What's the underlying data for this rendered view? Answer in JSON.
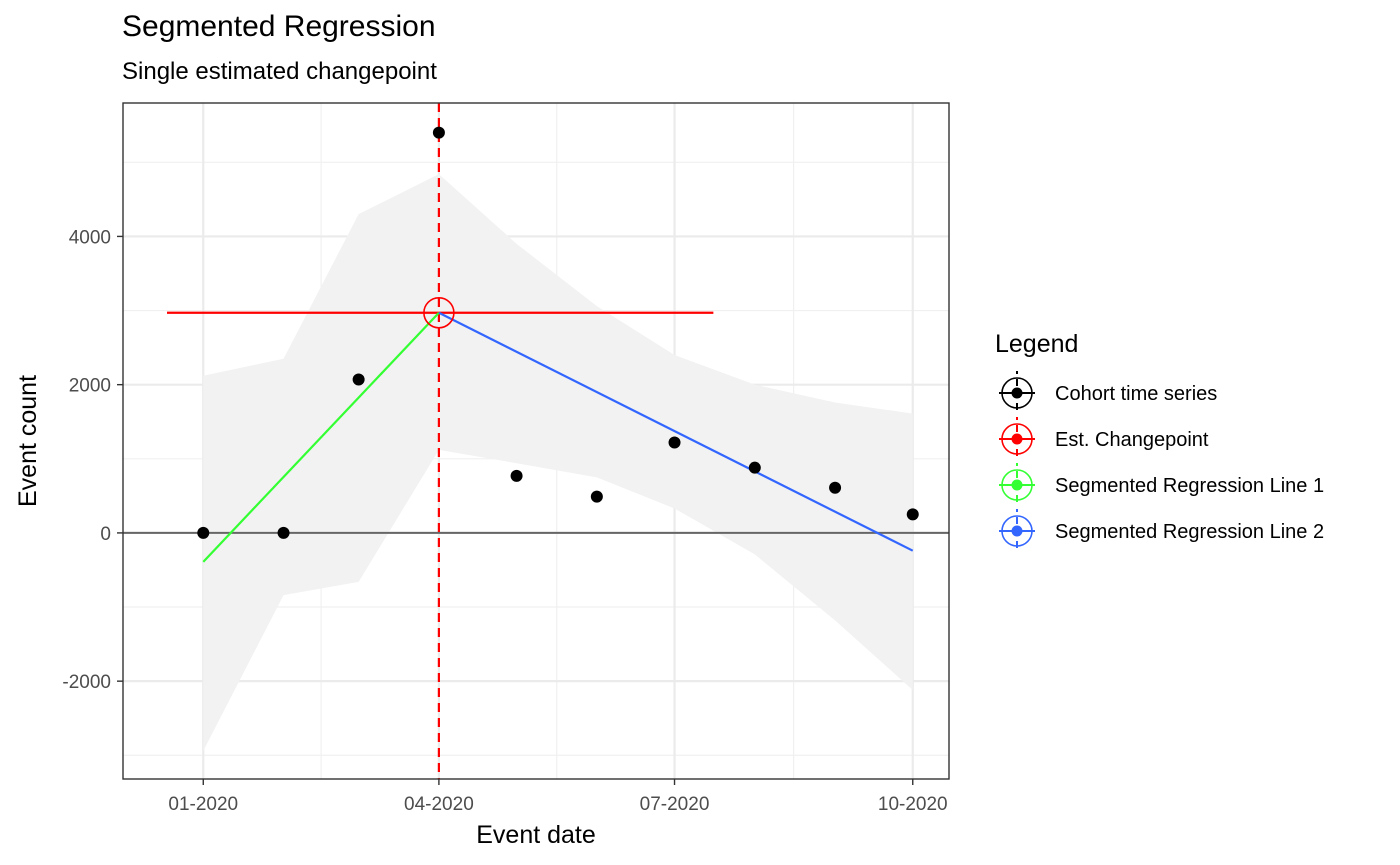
{
  "chart_data": {
    "type": "line",
    "title": "Segmented Regression",
    "subtitle": "Single estimated changepoint",
    "xlabel": "Event date",
    "ylabel": "Event count",
    "x_ticks": [
      "01-2020",
      "04-2020",
      "07-2020",
      "10-2020"
    ],
    "y_ticks": [
      -2000,
      0,
      2000,
      4000
    ],
    "xlim": [
      "2019-12-01",
      "2020-10-15"
    ],
    "ylim": [
      -3320,
      5800
    ],
    "grid": true,
    "legend_position": "right",
    "legend_title": "Legend",
    "legend": [
      {
        "label": "Cohort time series",
        "color": "#000000"
      },
      {
        "label": "Est. Changepoint",
        "color": "#ff0000"
      },
      {
        "label": "Segmented Regression Line 1",
        "color": "#33ff33"
      },
      {
        "label": "Segmented Regression Line 2",
        "color": "#3366ff"
      }
    ],
    "series": [
      {
        "name": "Cohort time series",
        "type": "scatter",
        "color": "#000000",
        "x": [
          "2020-01-01",
          "2020-02-01",
          "2020-03-01",
          "2020-04-01",
          "2020-05-01",
          "2020-06-01",
          "2020-07-01",
          "2020-08-01",
          "2020-09-01",
          "2020-10-01"
        ],
        "y": [
          0,
          0,
          2070,
          5400,
          770,
          490,
          1220,
          880,
          610,
          250
        ]
      },
      {
        "name": "Segmented Regression Line 1",
        "type": "line",
        "color": "#33ff33",
        "x": [
          "2020-01-01",
          "2020-04-01"
        ],
        "y": [
          -390,
          2970
        ]
      },
      {
        "name": "Segmented Regression Line 2",
        "type": "line",
        "color": "#3366ff",
        "x": [
          "2020-04-01",
          "2020-10-01"
        ],
        "y": [
          2970,
          -240
        ]
      }
    ],
    "confidence_band": {
      "color": "#f2f2f2",
      "x": [
        "2020-01-01",
        "2020-02-01",
        "2020-03-01",
        "2020-04-01",
        "2020-05-01",
        "2020-06-01",
        "2020-07-01",
        "2020-08-01",
        "2020-09-01",
        "2020-10-01"
      ],
      "upper": [
        2120,
        2350,
        4300,
        4840,
        3900,
        3060,
        2400,
        2000,
        1760,
        1610
      ],
      "lower": [
        -2940,
        -840,
        -660,
        1120,
        940,
        750,
        330,
        -290,
        -1180,
        -2120
      ]
    },
    "changepoint": {
      "x": "2020-04-01",
      "y": 2970,
      "ci": [
        "2019-12-18",
        "2020-07-16"
      ],
      "color": "#ff0000"
    }
  }
}
